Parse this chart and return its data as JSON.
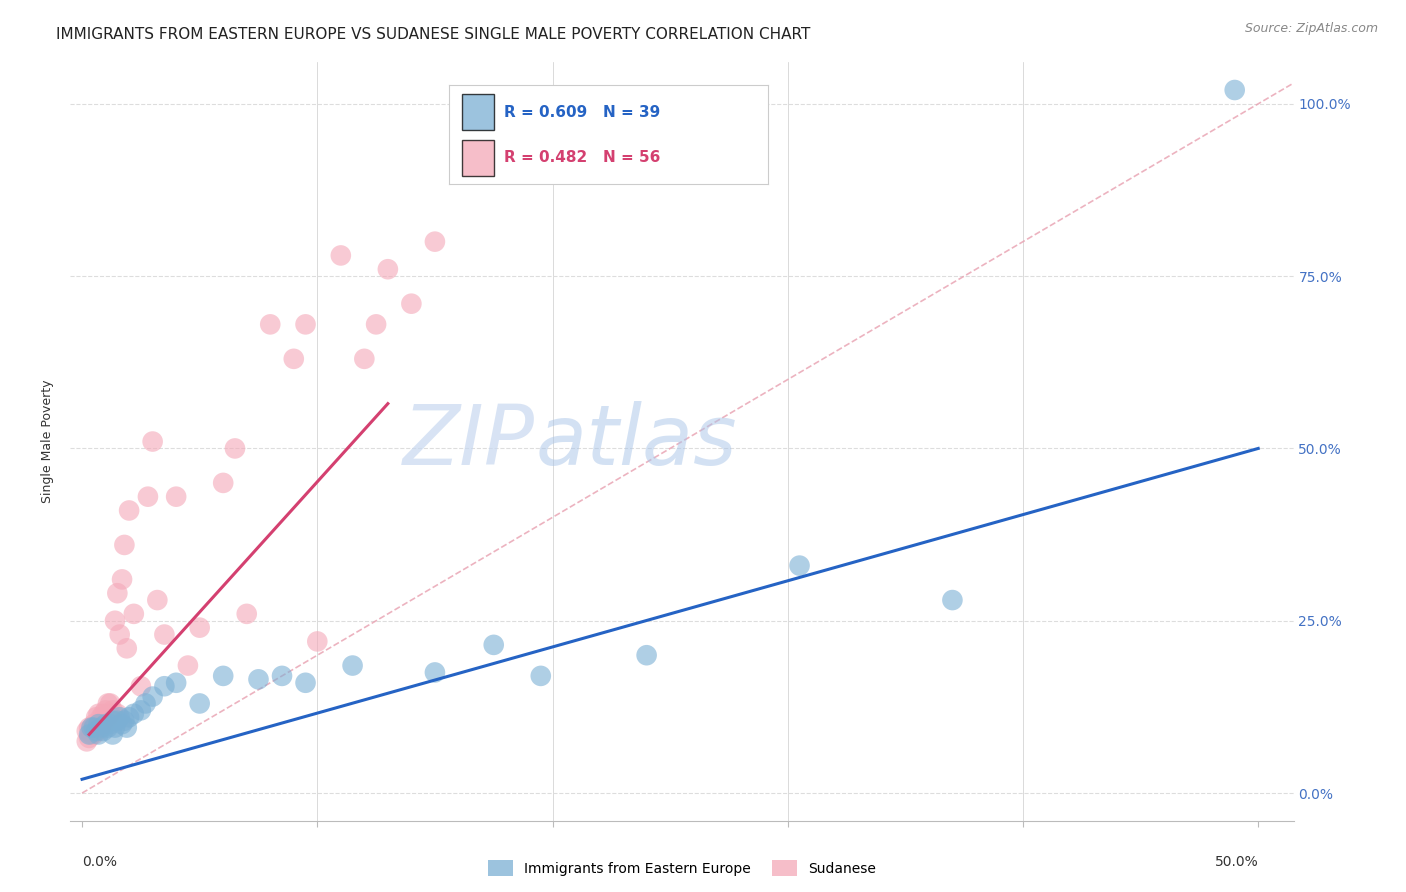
{
  "title": "IMMIGRANTS FROM EASTERN EUROPE VS SUDANESE SINGLE MALE POVERTY CORRELATION CHART",
  "source": "Source: ZipAtlas.com",
  "ylabel": "Single Male Poverty",
  "ytick_labels": [
    "0.0%",
    "25.0%",
    "50.0%",
    "75.0%",
    "100.0%"
  ],
  "ytick_values": [
    0.0,
    0.25,
    0.5,
    0.75,
    1.0
  ],
  "xtick_labels": [
    "0.0%",
    "50.0%"
  ],
  "xtick_values": [
    0.0,
    0.5
  ],
  "xlim": [
    -0.005,
    0.515
  ],
  "ylim": [
    -0.04,
    1.06
  ],
  "legend_blue_r": "R = 0.609",
  "legend_blue_n": "N = 39",
  "legend_pink_r": "R = 0.482",
  "legend_pink_n": "N = 56",
  "legend_label_blue": "Immigrants from Eastern Europe",
  "legend_label_pink": "Sudanese",
  "blue_color": "#7BAFD4",
  "pink_color": "#F4A8B8",
  "blue_line_color": "#2563C4",
  "pink_line_color": "#D44070",
  "diag_line_color": "#E8A0B0",
  "watermark_zip_color": "#C8D8F0",
  "watermark_atlas_color": "#A8C4E8",
  "background_color": "#FFFFFF",
  "grid_color": "#DDDDDD",
  "ytick_color": "#4472C4",
  "xtick_color": "#333333",
  "blue_scatter_x": [
    0.003,
    0.004,
    0.005,
    0.006,
    0.007,
    0.007,
    0.008,
    0.009,
    0.01,
    0.011,
    0.012,
    0.013,
    0.013,
    0.014,
    0.015,
    0.016,
    0.017,
    0.018,
    0.019,
    0.02,
    0.022,
    0.025,
    0.027,
    0.03,
    0.035,
    0.04,
    0.05,
    0.06,
    0.075,
    0.085,
    0.095,
    0.115,
    0.15,
    0.175,
    0.195,
    0.24,
    0.305,
    0.37,
    0.49
  ],
  "blue_scatter_y": [
    0.085,
    0.095,
    0.095,
    0.09,
    0.085,
    0.1,
    0.095,
    0.09,
    0.1,
    0.095,
    0.1,
    0.085,
    0.105,
    0.095,
    0.105,
    0.11,
    0.1,
    0.105,
    0.095,
    0.11,
    0.115,
    0.12,
    0.13,
    0.14,
    0.155,
    0.16,
    0.13,
    0.17,
    0.165,
    0.17,
    0.16,
    0.185,
    0.175,
    0.215,
    0.17,
    0.2,
    0.33,
    0.28,
    1.02
  ],
  "pink_scatter_x": [
    0.002,
    0.002,
    0.003,
    0.003,
    0.004,
    0.004,
    0.005,
    0.005,
    0.005,
    0.006,
    0.006,
    0.007,
    0.007,
    0.007,
    0.008,
    0.008,
    0.009,
    0.009,
    0.01,
    0.01,
    0.01,
    0.011,
    0.011,
    0.012,
    0.012,
    0.013,
    0.014,
    0.015,
    0.015,
    0.016,
    0.017,
    0.018,
    0.019,
    0.02,
    0.022,
    0.025,
    0.028,
    0.03,
    0.032,
    0.035,
    0.04,
    0.045,
    0.05,
    0.06,
    0.065,
    0.07,
    0.08,
    0.09,
    0.095,
    0.1,
    0.11,
    0.12,
    0.125,
    0.13,
    0.14,
    0.15
  ],
  "pink_scatter_y": [
    0.075,
    0.09,
    0.08,
    0.095,
    0.085,
    0.095,
    0.09,
    0.1,
    0.085,
    0.095,
    0.11,
    0.09,
    0.1,
    0.115,
    0.095,
    0.11,
    0.1,
    0.115,
    0.1,
    0.11,
    0.12,
    0.11,
    0.13,
    0.115,
    0.13,
    0.12,
    0.25,
    0.115,
    0.29,
    0.23,
    0.31,
    0.36,
    0.21,
    0.41,
    0.26,
    0.155,
    0.43,
    0.51,
    0.28,
    0.23,
    0.43,
    0.185,
    0.24,
    0.45,
    0.5,
    0.26,
    0.68,
    0.63,
    0.68,
    0.22,
    0.78,
    0.63,
    0.68,
    0.76,
    0.71,
    0.8
  ],
  "blue_line_x": [
    0.0,
    0.5
  ],
  "blue_line_y": [
    0.02,
    0.5
  ],
  "pink_line_x": [
    0.003,
    0.13
  ],
  "pink_line_y": [
    0.085,
    0.565
  ],
  "diag_line_x": [
    0.0,
    0.515
  ],
  "diag_line_y": [
    0.0,
    1.03
  ],
  "title_fontsize": 11,
  "axis_label_fontsize": 9,
  "tick_fontsize": 10,
  "legend_fontsize": 11,
  "source_fontsize": 9,
  "watermark_fontsize": 60
}
